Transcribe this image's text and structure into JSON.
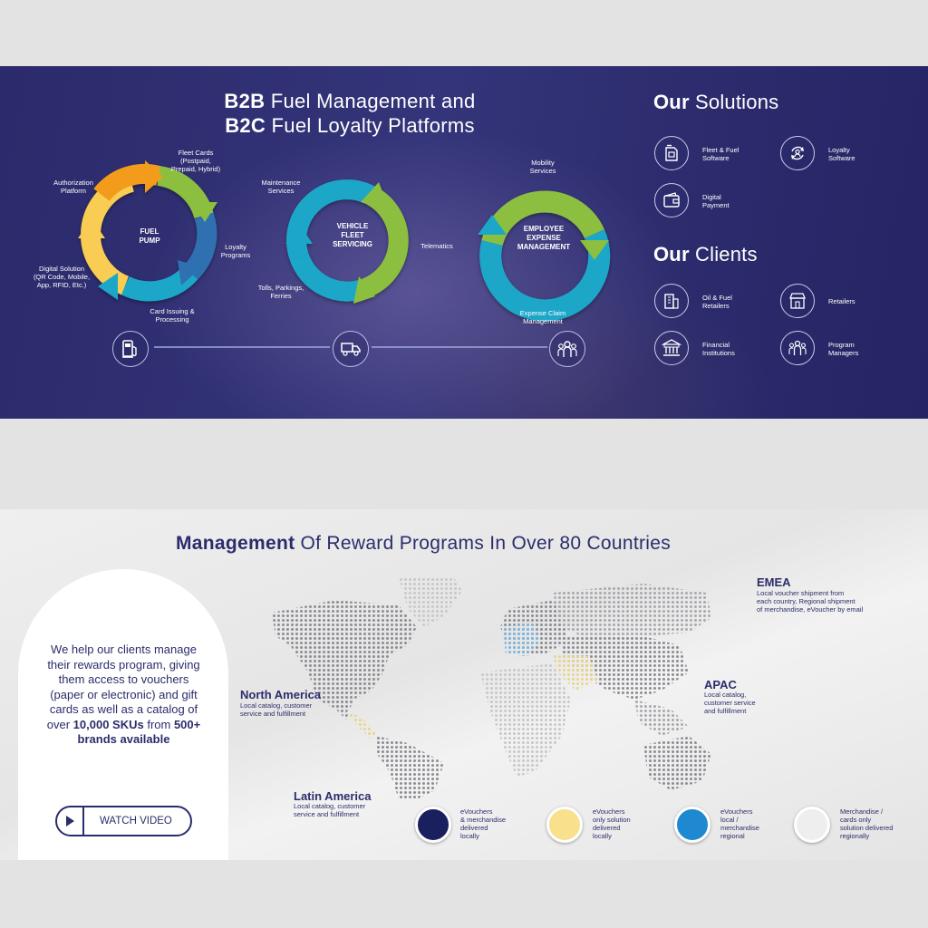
{
  "banner": {
    "title_line1_bold": "B2B",
    "title_line1_rest": "Fuel Management and",
    "title_line2_bold": "B2C",
    "title_line2_rest": "Fuel Loyalty Platforms",
    "cycle1": {
      "center": "FUEL\nPUMP",
      "labels": {
        "fleet_cards": "Fleet Cards\n(Postpaid,\nPrepaid, Hybrid)",
        "authorization": "Authorization\nPlatform",
        "loyalty": "Loyalty\nPrograms",
        "digital_solution": "Digital Solution\n(QR Code, Mobile,\nApp, RFID, Etc.)",
        "card_issuing": "Card Issuing &\nProcessing"
      }
    },
    "cycle2": {
      "center": "VEHICLE\nFLEET\nSERVICING",
      "labels": {
        "maintenance": "Maintenance\nServices",
        "telematics": "Telematics",
        "tolls": "Tolls, Parkings,\nFerries"
      }
    },
    "cycle3": {
      "center": "EMPLOYEE\nEXPENSE\nMANAGEMENT",
      "labels": {
        "mobility": "Mobility\nServices",
        "expense_claim": "Expense Claim\nManagement"
      }
    },
    "solutions": {
      "heading_bold": "Our",
      "heading_rest": "Solutions",
      "items": [
        "Fleet & Fuel\nSoftware",
        "Loyalty\nSoftware",
        "Digital\nPayment"
      ]
    },
    "clients": {
      "heading_bold": "Our",
      "heading_rest": "Clients",
      "items": [
        "Oil & Fuel\nRetailers",
        "Retailers",
        "Financial\nInstitutions",
        "Program\nManagers"
      ]
    },
    "icons": {
      "pump": "fuel-pump-icon",
      "truck": "delivery-truck-icon",
      "people": "group-people-icon"
    },
    "colors": {
      "orange": "#f39c1f",
      "green": "#8cbf3f",
      "blue": "#2e6fb0",
      "teal": "#1ba7c9",
      "yellow": "#f9cd52"
    }
  },
  "world": {
    "title_bold": "Management",
    "title_rest": "Of Reward Programs In Over 80 Countries",
    "arch_text_pre": "We help our clients manage their rewards program, giving them access to vouchers (paper or electronic) and gift cards as well as a catalog of over ",
    "arch_text_bold1": "10,000 SKUs",
    "arch_text_mid": " from ",
    "arch_text_bold2": "500+ brands available",
    "watch_video": "WATCH VIDEO",
    "regions": {
      "emea": {
        "name": "EMEA",
        "text": "Local voucher shipment from\neach country, Regional shipment\nof merchandise, eVoucher by email"
      },
      "apac": {
        "name": "APAC",
        "text": "Local catalog,\ncustomer service\nand fulfillment"
      },
      "north_america": {
        "name": "North America",
        "text": "Local catalog, customer\nservice and fulfillment"
      },
      "latin_america": {
        "name": "Latin America",
        "text": "Local catalog, customer\nservice and fulfillment"
      }
    },
    "legend": [
      {
        "color": "#1a1f5e",
        "text": "eVouchers\n& merchandise\ndelivered\nlocally"
      },
      {
        "color": "#f8e08c",
        "text": "eVouchers\nonly solution\ndelivered\nlocally"
      },
      {
        "color": "#1e88d0",
        "text": "eVouchers\nlocal /\nmerchandise\nregional"
      },
      {
        "color": "#eeeeee",
        "text": "Merchandise /\ncards only\nsolution delivered\nregionally"
      }
    ]
  }
}
